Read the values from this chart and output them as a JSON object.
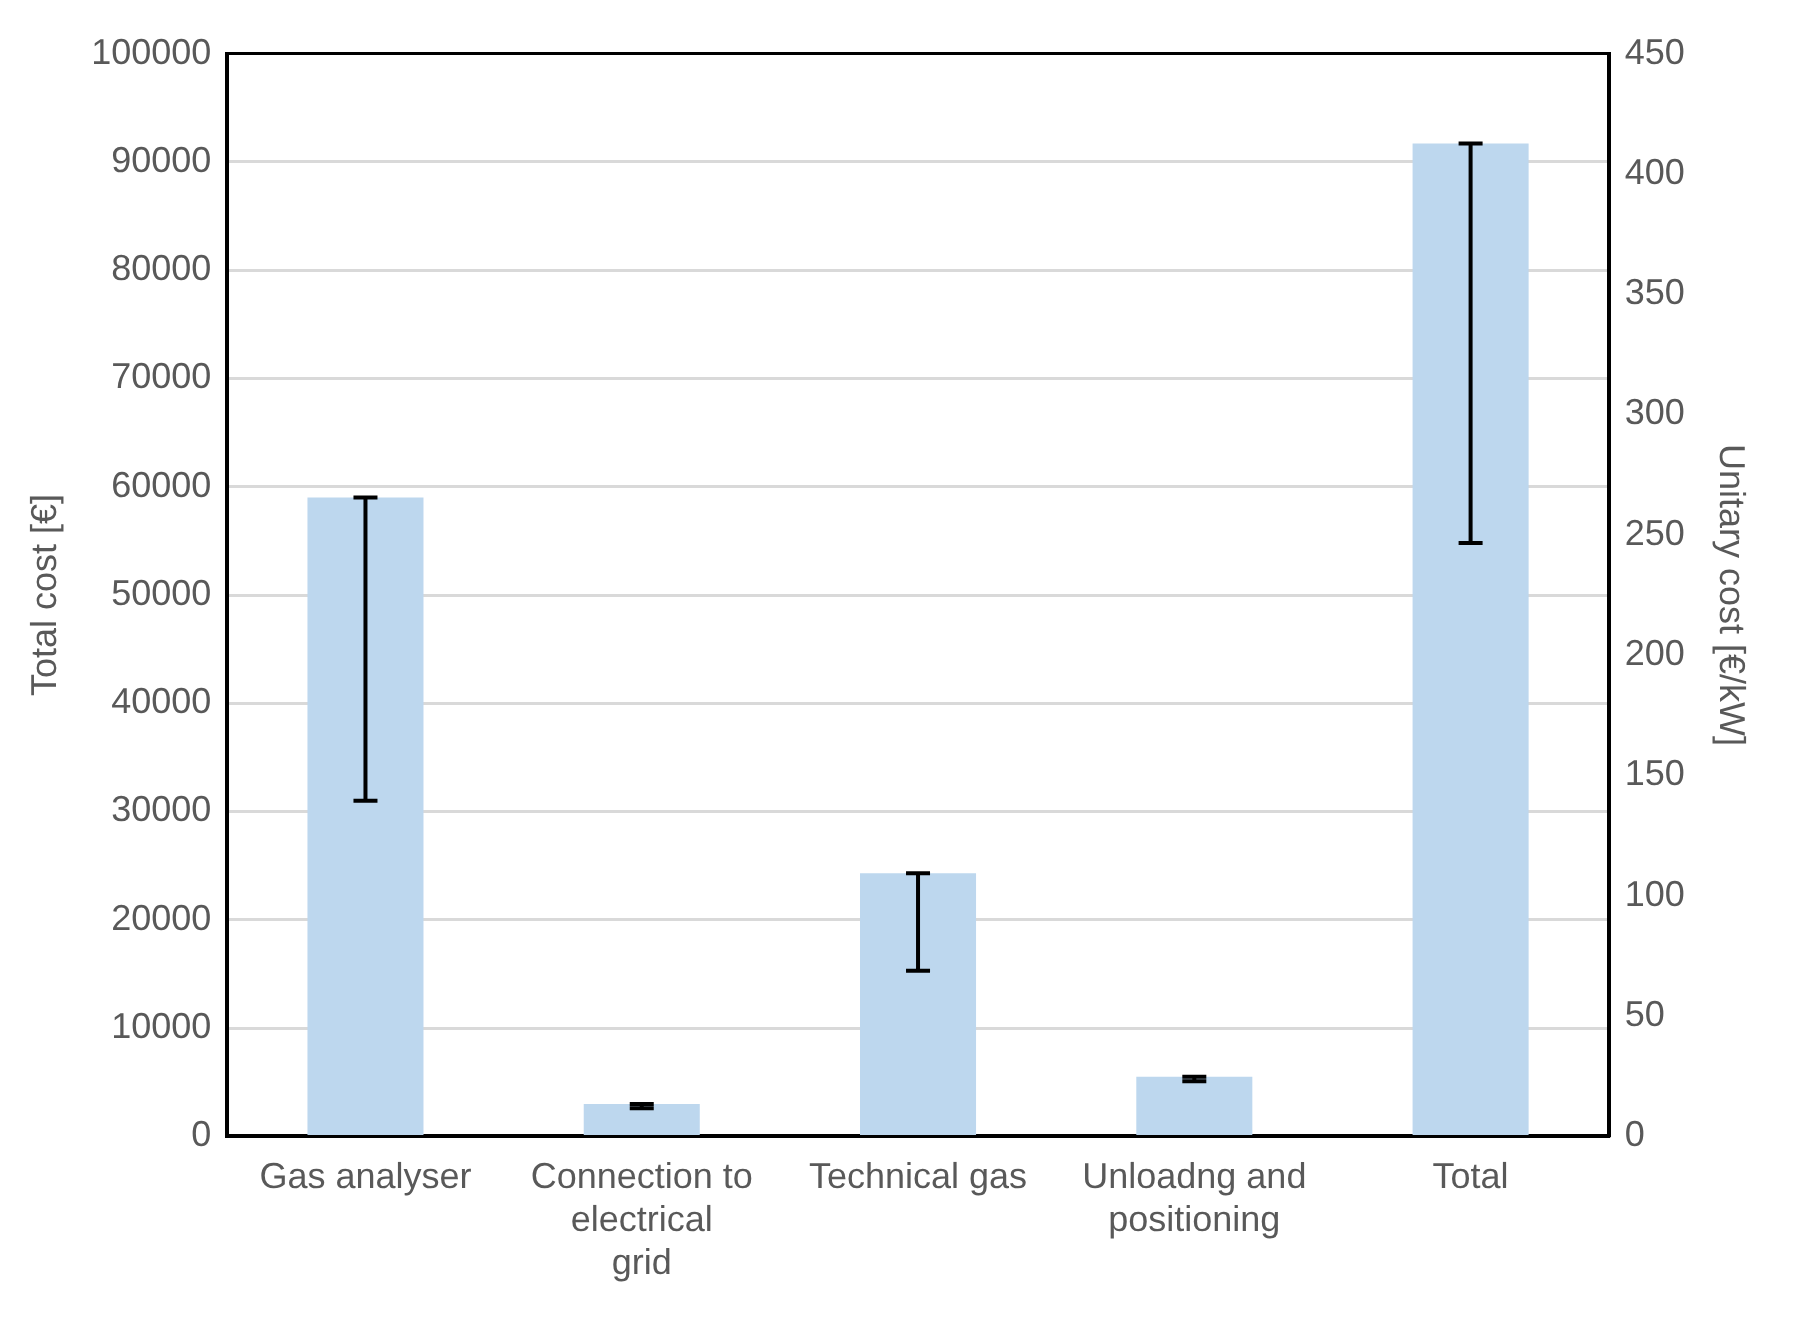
{
  "chart_data": {
    "type": "bar",
    "categories": [
      "Gas analyser",
      "Connection to electrical grid",
      "Technical gas",
      "Unloadng and positioning",
      "Total"
    ],
    "values": [
      59000,
      3000,
      24300,
      5500,
      91700
    ],
    "color": "#bdd7ee",
    "errors": [
      [
        31000,
        59000
      ],
      [
        2600,
        3000
      ],
      [
        15300,
        24300
      ],
      [
        5100,
        5500
      ],
      [
        54800,
        91700
      ]
    ],
    "ylabel": "Total cost [€]",
    "y2label": "Unitary cost [€/kW]",
    "ylim": [
      0,
      100000
    ],
    "yticks": [
      0,
      10000,
      20000,
      30000,
      40000,
      50000,
      60000,
      70000,
      80000,
      90000,
      100000
    ],
    "y2lim": [
      0,
      450
    ],
    "y2ticks": [
      0,
      50,
      100,
      150,
      200,
      250,
      300,
      350,
      400,
      450
    ],
    "grid": "y",
    "legend": false
  }
}
